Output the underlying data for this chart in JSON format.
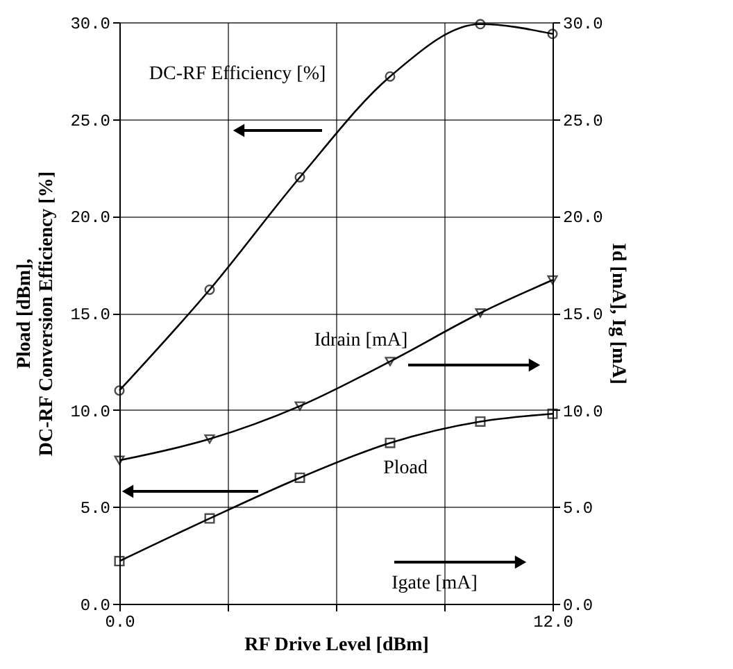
{
  "chart_data": {
    "type": "line",
    "xlabel": "RF Drive Level [dBm]",
    "ylabel": "Pload [dBm],\nDC-RF Conversion Efficiency [%]",
    "y2label": "Id [mA], Ig [mA]",
    "x": [
      0,
      2.5,
      5,
      7.5,
      10,
      12
    ],
    "series": [
      {
        "color": "#000000",
        "marker": "circle",
        "values": [
          11.0,
          16.2,
          22.0,
          27.2,
          29.9,
          29.4
        ]
      },
      {
        "color": "#000000",
        "marker": "triangle-down",
        "axis": "y2",
        "values": [
          7.4,
          8.5,
          10.2,
          12.5,
          15.0,
          16.7
        ]
      },
      {
        "color": "#000000",
        "marker": "square",
        "values": [
          2.2,
          4.4,
          6.5,
          8.3,
          9.4,
          9.8
        ]
      }
    ],
    "xlim": [
      0,
      12
    ],
    "xticks": [
      {
        "value": 0,
        "label": "0.0"
      },
      {
        "value": 3,
        "label": null
      },
      {
        "value": 6,
        "label": null
      },
      {
        "value": 9,
        "label": null
      },
      {
        "value": 12,
        "label": "12.0"
      }
    ],
    "ylim": [
      0,
      30
    ],
    "yticks": [
      {
        "value": 0,
        "label": "0.0"
      },
      {
        "value": 5,
        "label": "5.0"
      },
      {
        "value": 10,
        "label": "10.0"
      },
      {
        "value": 15,
        "label": "15.0"
      },
      {
        "value": 20,
        "label": "20.0"
      },
      {
        "value": 25,
        "label": "25.0"
      },
      {
        "value": 30,
        "label": "30.0"
      }
    ],
    "y2lim": [
      0,
      30
    ],
    "y2ticks": [
      {
        "value": 0,
        "label": "0.0"
      },
      {
        "value": 5,
        "label": "5.0"
      },
      {
        "value": 10,
        "label": "10.0"
      },
      {
        "value": 15,
        "label": "15.0"
      },
      {
        "value": 20,
        "label": "20.0"
      },
      {
        "value": 25,
        "label": "25.0"
      },
      {
        "value": 30,
        "label": "30.0"
      }
    ],
    "grid": true,
    "annotations": [
      "DC-RF Efficiency [%]",
      "Idrain [mA]",
      "Pload",
      "Igate [mA]"
    ]
  }
}
